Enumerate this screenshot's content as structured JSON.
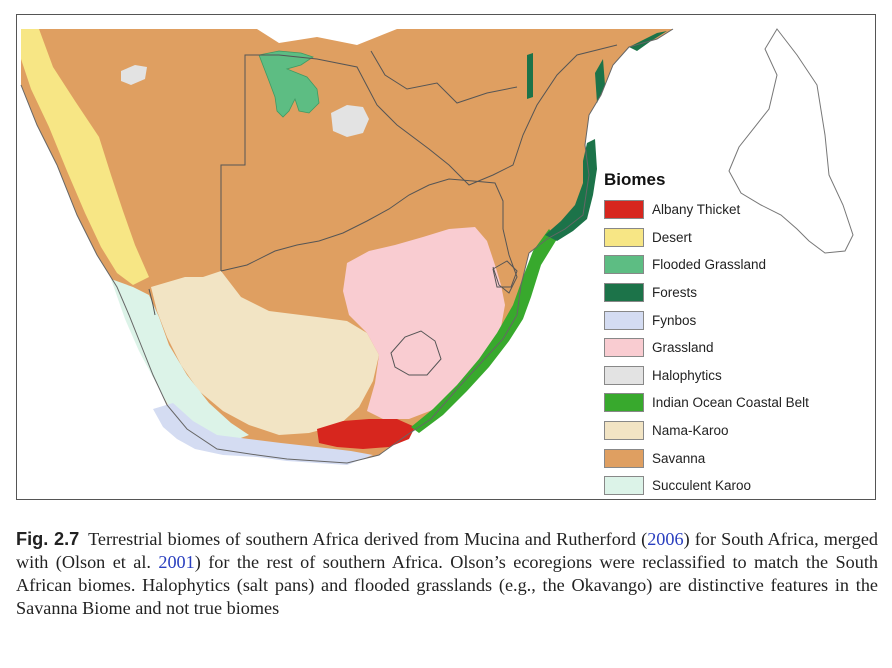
{
  "legend": {
    "title": "Biomes",
    "items": [
      {
        "label": "Albany Thicket",
        "color": "#d7261e"
      },
      {
        "label": "Desert",
        "color": "#f7e685"
      },
      {
        "label": "Flooded Grassland",
        "color": "#5dbd83"
      },
      {
        "label": "Forests",
        "color": "#1c7349"
      },
      {
        "label": "Fynbos",
        "color": "#d4dcf2"
      },
      {
        "label": "Grassland",
        "color": "#f9ccd1"
      },
      {
        "label": "Halophytics",
        "color": "#e3e3e3"
      },
      {
        "label": "Indian Ocean Coastal Belt",
        "color": "#38a92d"
      },
      {
        "label": "Nama-Karoo",
        "color": "#f2e4c4"
      },
      {
        "label": "Savanna",
        "color": "#df9f61"
      },
      {
        "label": "Succulent Karoo",
        "color": "#dcf3e8"
      }
    ]
  },
  "caption": {
    "fig_label": "Fig. 2.7",
    "text_1": "Terrestrial biomes of southern Africa derived from Mucina and Rutherford (",
    "cite_1": "2006",
    "text_2": ") for South Africa, merged with (Olson et al. ",
    "cite_2": "2001",
    "text_3": ") for the rest of southern Africa. Olson’s ecoregions were reclassified to match the South African biomes. Halophytics (salt pans) and flooded grasslands (e.g., the Okavango) are distinctive features in the Savanna Biome and not true biomes"
  }
}
